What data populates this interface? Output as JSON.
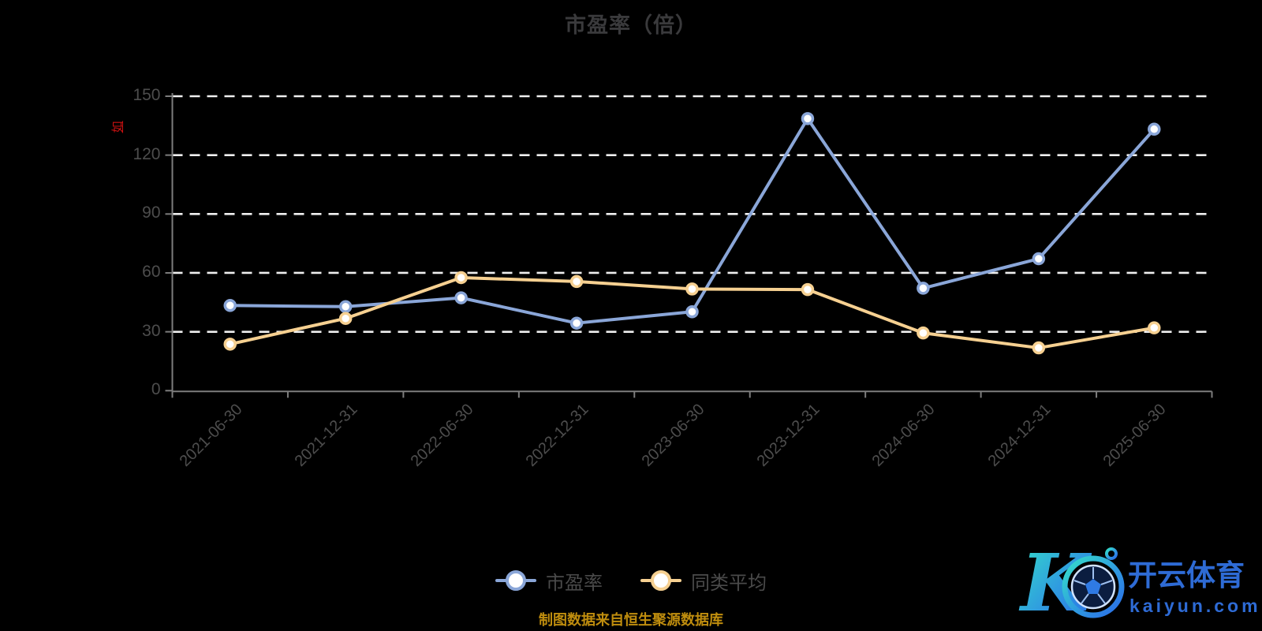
{
  "page": {
    "background": "#000000"
  },
  "chart_data": {
    "type": "line",
    "title": "市盈率（倍）",
    "y_axis_unit_label": "如",
    "categories": [
      "2021-06-30",
      "2021-12-31",
      "2022-06-30",
      "2022-12-31",
      "2023-06-30",
      "2023-12-31",
      "2024-06-30",
      "2024-12-31",
      "2025-06-30"
    ],
    "series": [
      {
        "name": "市盈率",
        "color": "#8aa6d8",
        "marker_fill": "#ffffff",
        "values": [
          43.4,
          42.8,
          47.3,
          34.4,
          40.2,
          138.6,
          52.2,
          67.2,
          133.2
        ]
      },
      {
        "name": "同类平均",
        "color": "#f6d091",
        "marker_fill": "#ffffff",
        "values": [
          23.7,
          36.8,
          57.6,
          55.6,
          51.8,
          51.5,
          29.4,
          21.8,
          32.0
        ]
      }
    ],
    "ylim": [
      0,
      150
    ],
    "yticks": [
      0,
      30,
      60,
      90,
      120,
      150
    ],
    "xlabel": "",
    "ylabel": "",
    "grid": "horizontal-dashed",
    "legend_position": "bottom-center"
  },
  "colors": {
    "background": "#000000",
    "title_text": "#3a3a3c",
    "axis_line": "#7d7d7d",
    "tick_label": "#4d4d4d",
    "gridline": "#efefef",
    "legend_text": "#4a4a4a",
    "unit_label_red": "#cc1111",
    "source_text": "#bf8d0e",
    "watermark_blue": "#2e6bd5",
    "watermark_teal": "#35e0c8"
  },
  "source_note": "制图数据来自恒生聚源数据库",
  "watermark": {
    "letter": "K",
    "brand": "开云体育",
    "domain": "kaiyun.com"
  }
}
